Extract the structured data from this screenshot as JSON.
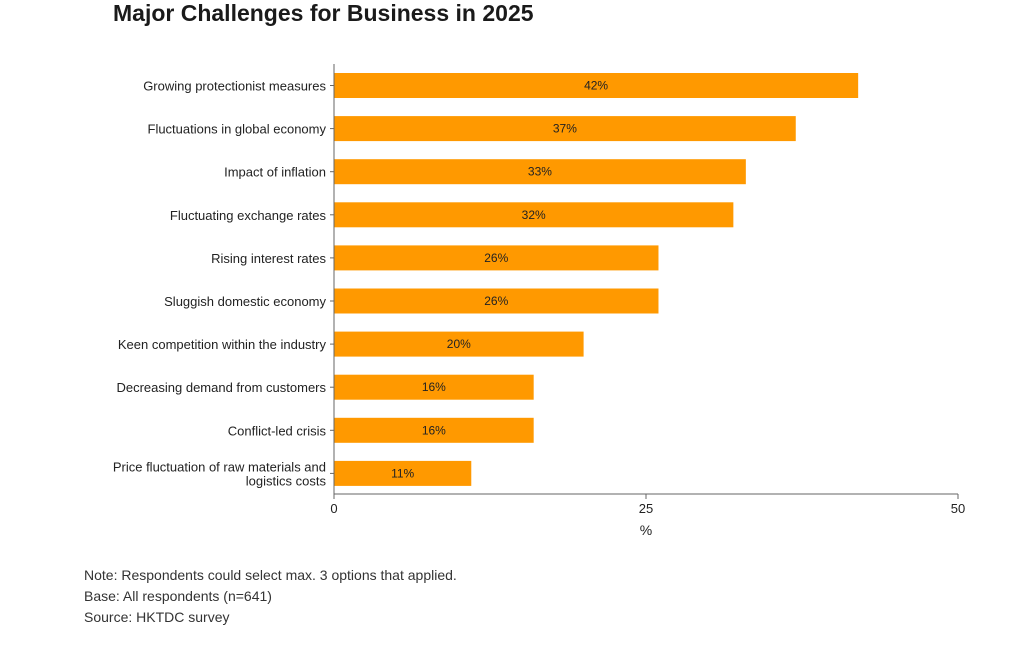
{
  "chart_data": {
    "type": "bar",
    "orientation": "horizontal",
    "title": "Major Challenges for Business in 2025",
    "xlabel": "%",
    "ylabel": "",
    "xlim": [
      0,
      50
    ],
    "xticks": [
      "0",
      "25",
      "50"
    ],
    "bar_color": "#ff9900",
    "categories": [
      [
        "Growing protectionist measures"
      ],
      [
        "Fluctuations in global economy"
      ],
      [
        "Impact of inflation"
      ],
      [
        "Fluctuating exchange rates"
      ],
      [
        "Rising interest rates"
      ],
      [
        "Sluggish domestic economy"
      ],
      [
        "Keen competition within the industry"
      ],
      [
        "Decreasing demand from customers"
      ],
      [
        "Conflict-led crisis"
      ],
      [
        "Price fluctuation of raw materials and",
        "logistics costs"
      ]
    ],
    "values": [
      42,
      37,
      33,
      32,
      26,
      26,
      20,
      16,
      16,
      11
    ],
    "data_labels": [
      "42%",
      "37%",
      "33%",
      "32%",
      "26%",
      "26%",
      "20%",
      "16%",
      "16%",
      "11%"
    ],
    "grid": false,
    "legend": "none"
  },
  "notes": {
    "note": "Note: Respondents could select max. 3 options that applied.",
    "base": "Base: All respondents (n=641)",
    "source": "Source: HKTDC survey"
  }
}
